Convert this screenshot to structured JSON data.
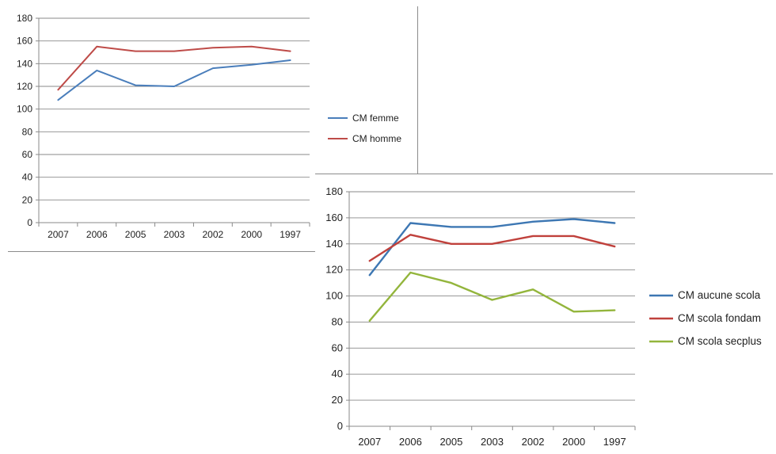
{
  "chart_data": [
    {
      "type": "line",
      "categories": [
        "2007",
        "2006",
        "2005",
        "2003",
        "2002",
        "2000",
        "1997"
      ],
      "ylim": [
        0,
        180
      ],
      "yticks": [
        0,
        20,
        40,
        60,
        80,
        100,
        120,
        140,
        160,
        180
      ],
      "grid": true,
      "legend_position": "right",
      "series": [
        {
          "name": "CM femme",
          "color": "#4a7ebb",
          "values": [
            108,
            134,
            121,
            120,
            136,
            139,
            143
          ]
        },
        {
          "name": "CM homme",
          "color": "#be4b48",
          "values": [
            117,
            155,
            151,
            151,
            154,
            155,
            151
          ]
        }
      ]
    },
    {
      "type": "line",
      "categories": [
        "2007",
        "2006",
        "2005",
        "2003",
        "2002",
        "2000",
        "1997"
      ],
      "ylim": [
        0,
        180
      ],
      "yticks": [
        0,
        20,
        40,
        60,
        80,
        100,
        120,
        140,
        160,
        180
      ],
      "grid": true,
      "legend_position": "right",
      "series": [
        {
          "name": "CM aucune scola",
          "color": "#3d77b3",
          "values": [
            116,
            156,
            153,
            153,
            157,
            159,
            156
          ]
        },
        {
          "name": "CM scola fondam",
          "color": "#c0413c",
          "values": [
            127,
            147,
            140,
            140,
            146,
            146,
            138
          ]
        },
        {
          "name": "CM scola secplus",
          "color": "#93b53c",
          "values": [
            81,
            118,
            110,
            97,
            105,
            88,
            89
          ]
        }
      ]
    }
  ]
}
